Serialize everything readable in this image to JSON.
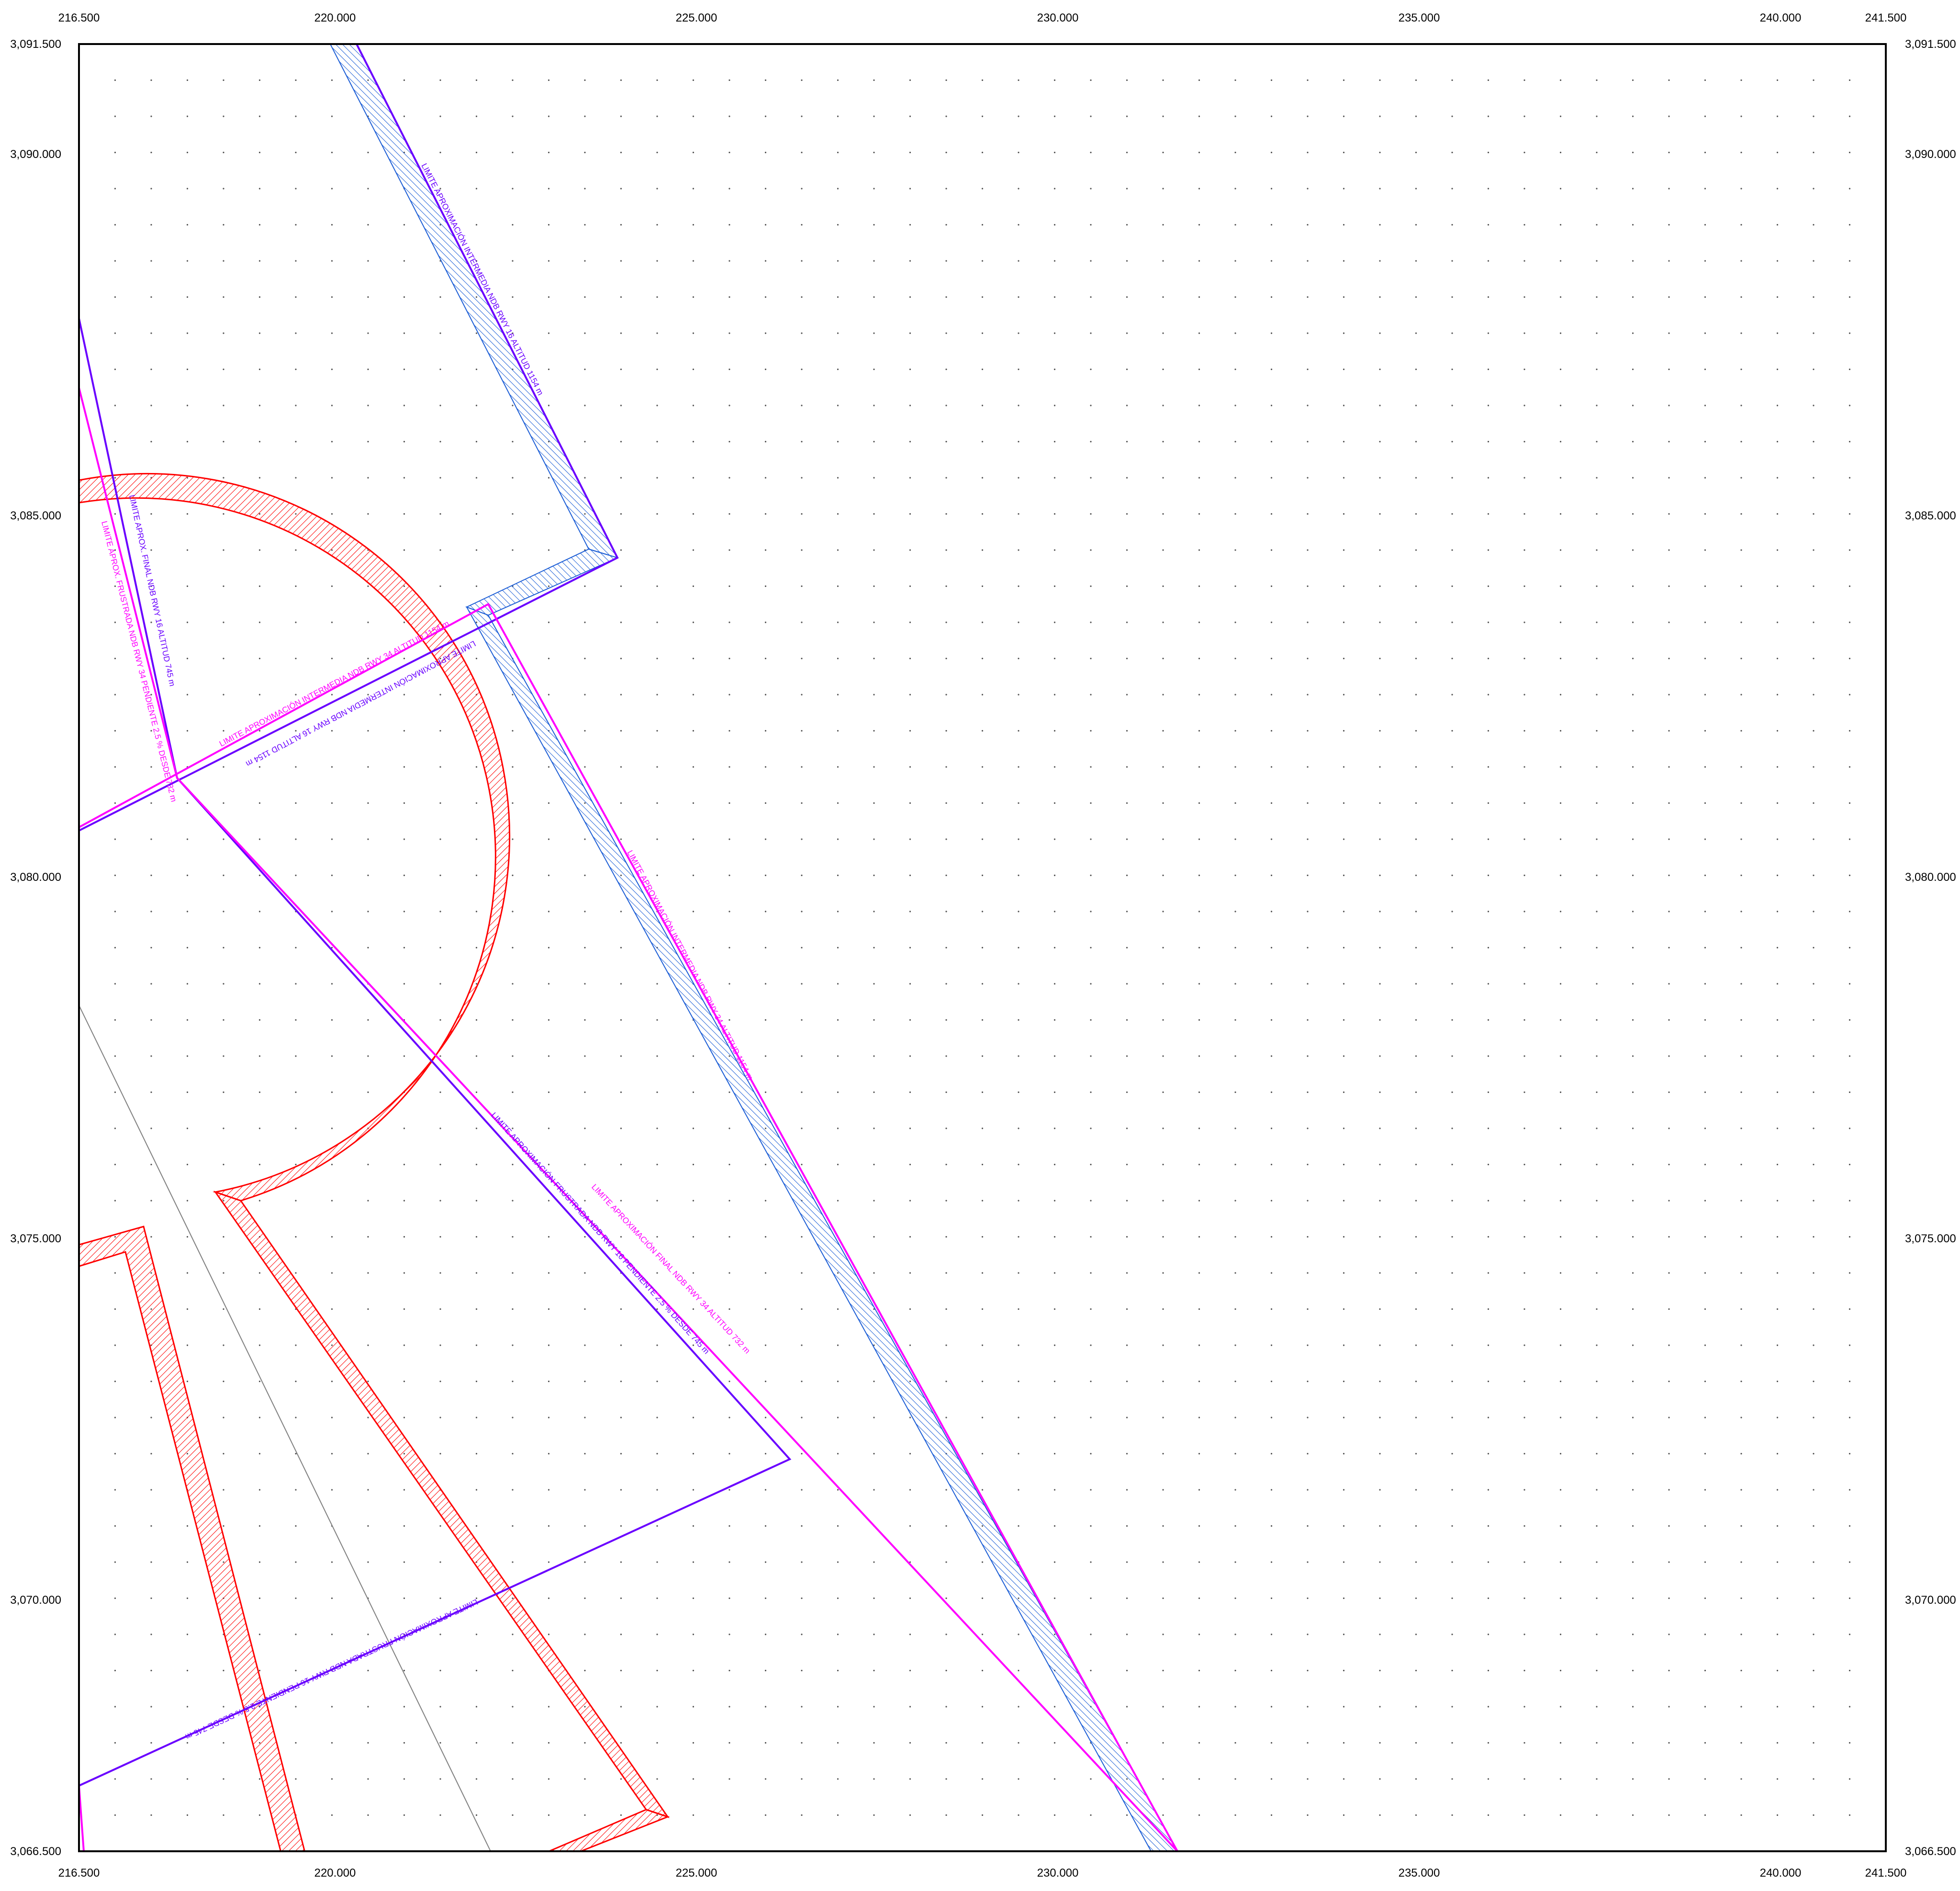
{
  "x_ticks": [
    "216.500",
    "220.000",
    "225.000",
    "230.000",
    "235.000",
    "240.000",
    "241.500"
  ],
  "y_ticks": [
    "3,091.500",
    "3,090.000",
    "3,085.000",
    "3,080.000",
    "3,075.000",
    "3,070.000",
    "3,066.500"
  ],
  "colors": {
    "frame": "#000000",
    "grid_dot": "#555555",
    "protection_circle": "#ff0000",
    "inner_hatch": "#1e5fd6",
    "purple_line": "#6a00ff",
    "magenta_line": "#ff00ff",
    "gray_line": "#808080"
  },
  "annotations": [
    {
      "text": "LIMITE APROXIMACIÓN INTERMEDIA NDB RWY 16 ALTITUD 1154 m",
      "color": "purple"
    },
    {
      "text": "LIMITE APROX. FINAL NDB RWY 16 ALTITUD 745 m",
      "color": "purple"
    },
    {
      "text": "LIMITE APROX. FRUSTRADA NDB RWY 34 PENDIENTE 2.5 % DESDE 732 m",
      "color": "magenta"
    },
    {
      "text": "LIMITE APROXIMACIÓN INTERMEDIA NDB RWY 34 ALTITUD 1154 m",
      "color": "magenta"
    },
    {
      "text": "LIMITE APROXIMACIÓN INTERMEDIA NDB RWY 16 ALTITUD 1154 m",
      "color": "purple"
    },
    {
      "text": "LIMITE APROXIMACIÓN INTERMEDIA NDB RWY 34 ALTITUD 1154 m",
      "color": "magenta"
    },
    {
      "text": "LIMITE APROXIMACIÓN FINAL NDB RWY 34 ALTITUD 732 m",
      "color": "magenta"
    },
    {
      "text": "LIMITE APROXIMACIÓN FRUSTRADA NDB RWY 16 PENDIENTE 2.5 % DESDE 745 m",
      "color": "purple"
    },
    {
      "text": "LIMITE APROXIMACIÓN FRUSTRADA NDB RWY 16 PENDIENTE 2.5 % DESDE 745 m",
      "color": "purple"
    }
  ]
}
